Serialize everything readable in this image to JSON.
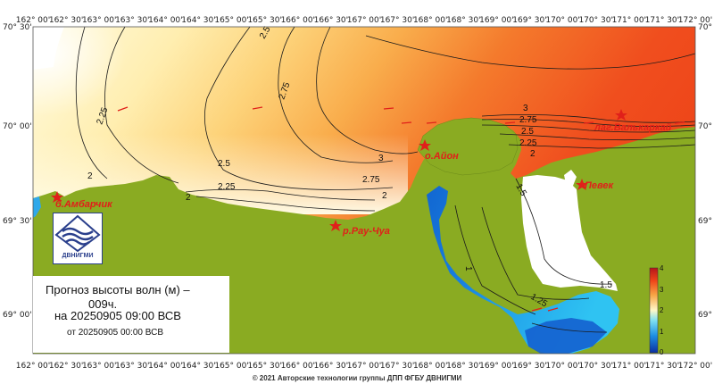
{
  "map": {
    "top_lon_ticks": [
      "162° 00'",
      "162° 30'",
      "163° 00'",
      "163° 30'",
      "164° 00'",
      "164° 30'",
      "165° 00'",
      "165° 30'",
      "166° 00'",
      "166° 30'",
      "167° 00'",
      "167° 30'",
      "168° 00'",
      "168° 30'",
      "169° 00'",
      "169° 30'",
      "170° 00'",
      "170° 30'",
      "171° 00'",
      "171° 30'",
      "172° 00'"
    ],
    "bottom_lon_ticks": [
      "162° 00'",
      "162° 30'",
      "163° 00'",
      "163° 30'",
      "164° 00'",
      "164° 30'",
      "165° 00'",
      "165° 30'",
      "166° 00'",
      "166° 30'",
      "167° 00'",
      "167° 30'",
      "168° 00'",
      "168° 30'",
      "169° 00'",
      "169° 30'",
      "170° 00'",
      "170° 30'",
      "171° 00'",
      "171° 30'",
      "172° 00'"
    ],
    "left_lat_ticks": [
      "70° 30'",
      "70° 00'",
      "69° 30'",
      "69° 00'"
    ],
    "right_lat_ticks": [
      "70° 3",
      "70° 0",
      "69° 3",
      "69° 0"
    ],
    "contour_labels": [
      "2.5",
      "2.75",
      "2.25",
      "2",
      "2.5",
      "2.25",
      "2",
      "2.75",
      "3",
      "2",
      "3",
      "2.75",
      "2.5",
      "2.25",
      "2",
      "1.5",
      "1",
      "1.25",
      "1.5"
    ],
    "places": [
      "б.Амбарчик",
      "р.Рау-Чуа",
      "о.Айон",
      "лаг.Валькаркай",
      "Певек"
    ],
    "colors": {
      "land": "#8aab22",
      "sea_high": "#f0441c",
      "sea_low": "#fff6c8",
      "bay_blue": "#1a7fd6",
      "place_text": "#e0201a"
    }
  },
  "scale": {
    "labels": [
      "4",
      "3",
      "2",
      "1",
      "0"
    ],
    "range": [
      0,
      4
    ]
  },
  "title": {
    "line1": "Прогноз высоты волн (м) –",
    "line2": "009ч.",
    "line3": "на 20250905 09:00 ВСВ",
    "line4": "от 20250905 00:00 ВСВ"
  },
  "logo": {
    "text": "ДВНИГМИ",
    "icon": "wave-logo-icon"
  },
  "footer": "© 2021 Авторские технологии группы ДПП ФГБУ ДВНИГМИ"
}
